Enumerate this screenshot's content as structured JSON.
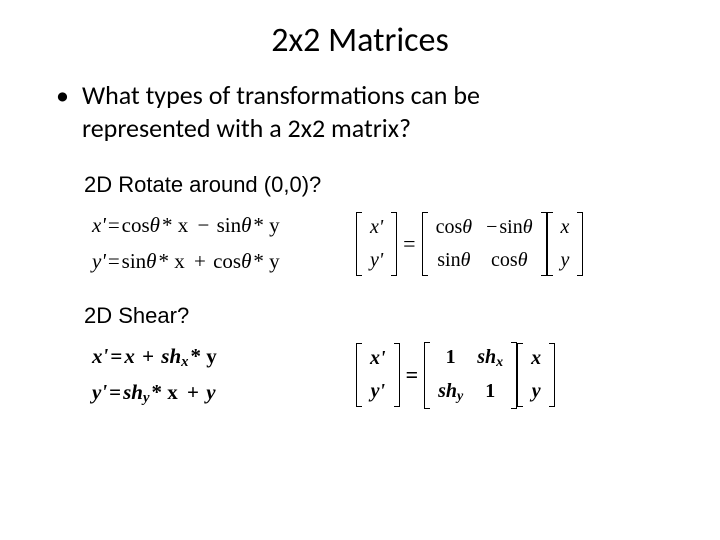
{
  "title": "2x2 Matrices",
  "bullet_line1": "What types of transformations can be",
  "bullet_line2": "represented with a 2x2 matrix?",
  "rotate": {
    "label": "2D Rotate around (0,0)?",
    "eq1_lhs": "x'",
    "eq1_rhs_a": "cos",
    "eq1_rhs_a_arg": "θ",
    "eq1_rhs_a_tail": "* x",
    "eq1_rhs_op": "−",
    "eq1_rhs_b": "sin",
    "eq1_rhs_b_arg": "θ",
    "eq1_rhs_b_tail": "* y",
    "eq2_lhs": "y'",
    "eq2_rhs_a": "sin",
    "eq2_rhs_a_arg": "θ",
    "eq2_rhs_a_tail": "* x",
    "eq2_rhs_op": "+",
    "eq2_rhs_b": "cos",
    "eq2_rhs_b_arg": "θ",
    "eq2_rhs_b_tail": "* y",
    "vec_out_top": "x'",
    "vec_out_bot": "y'",
    "m11_fn": "cos",
    "m11_arg": "θ",
    "m12_neg": "−",
    "m12_fn": "sin",
    "m12_arg": "θ",
    "m21_fn": "sin",
    "m21_arg": "θ",
    "m22_fn": "cos",
    "m22_arg": "θ",
    "vec_in_top": "x",
    "vec_in_bot": "y"
  },
  "shear": {
    "label": "2D Shear?",
    "eq1_lhs": "x'",
    "eq1_rhs_a": "x",
    "eq1_rhs_op": "+",
    "eq1_rhs_b_var": "sh",
    "eq1_rhs_b_sub": "x",
    "eq1_rhs_b_tail": "* y",
    "eq2_lhs": "y'",
    "eq2_rhs_a_var": "sh",
    "eq2_rhs_a_sub": "y",
    "eq2_rhs_a_tail": "* x",
    "eq2_rhs_op": "+",
    "eq2_rhs_b": "y",
    "vec_out_top": "x'",
    "vec_out_bot": "y'",
    "m11": "1",
    "m12_var": "sh",
    "m12_sub": "x",
    "m21_var": "sh",
    "m21_sub": "y",
    "m22": "1",
    "vec_in_top": "x",
    "vec_in_bot": "y"
  },
  "eq_sign": "="
}
